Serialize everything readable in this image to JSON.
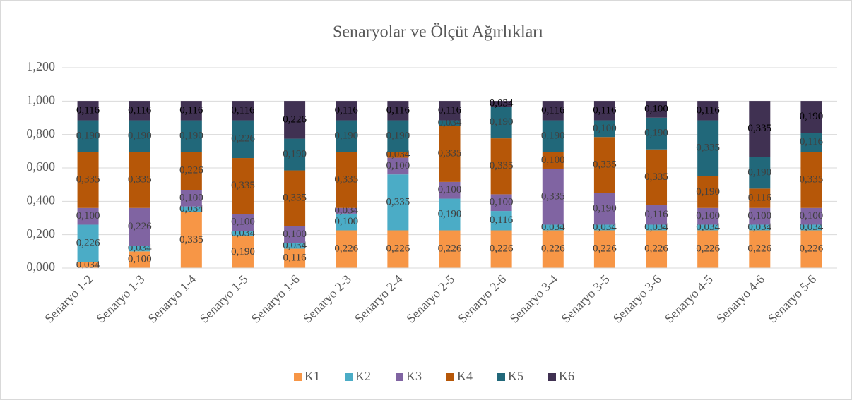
{
  "chart_data": {
    "type": "stacked_bar",
    "title": "Senaryolar ve Ölçüt Ağırlıkları",
    "categories": [
      "Senaryo 1-2",
      "Senaryo 1-3",
      "Senaryo 1-4",
      "Senaryo 1-5",
      "Senaryo 1-6",
      "Senaryo 2-3",
      "Senaryo 2-4",
      "Senaryo 2-5",
      "Senaryo 2-6",
      "Senaryo 3-4",
      "Senaryo 3-5",
      "Senaryo 3-6",
      "Senaryo 4-5",
      "Senaryo 4-6",
      "Senaryo 5-6"
    ],
    "series": [
      {
        "name": "K1",
        "color": "#f79646",
        "values": [
          0.034,
          0.1,
          0.335,
          0.19,
          0.116,
          0.226,
          0.226,
          0.226,
          0.226,
          0.226,
          0.226,
          0.226,
          0.226,
          0.226,
          0.226
        ],
        "value_labels": [
          "0,034",
          "0,100",
          "0,335",
          "0,190",
          "0,116",
          "0,226",
          "0,226",
          "0,226",
          "0,226",
          "0,226",
          "0,226",
          "0,226",
          "0,226",
          "0,226",
          "0,226"
        ]
      },
      {
        "name": "K2",
        "color": "#4bacc6",
        "values": [
          0.226,
          0.034,
          0.034,
          0.034,
          0.034,
          0.1,
          0.335,
          0.19,
          0.116,
          0.034,
          0.034,
          0.034,
          0.034,
          0.034,
          0.034
        ],
        "value_labels": [
          "0,226",
          "0,034",
          "0,034",
          "0,034",
          "0,034",
          "0,100",
          "0,335",
          "0,190",
          "0,116",
          "0,034",
          "0,034",
          "0,034",
          "0,034",
          "0,034",
          "0,034"
        ]
      },
      {
        "name": "K3",
        "color": "#8064a2",
        "values": [
          0.1,
          0.226,
          0.1,
          0.1,
          0.1,
          0.034,
          0.1,
          0.1,
          0.1,
          0.335,
          0.19,
          0.116,
          0.1,
          0.1,
          0.1
        ],
        "value_labels": [
          "0,100",
          "0,226",
          "0,100",
          "0,100",
          "0,100",
          "0,034",
          "0,100",
          "0,100",
          "0,100",
          "0,335",
          "0,190",
          "0,116",
          "0,100",
          "0,100",
          "0,100"
        ]
      },
      {
        "name": "K4",
        "color": "#b65708",
        "values": [
          0.335,
          0.335,
          0.226,
          0.335,
          0.335,
          0.335,
          0.034,
          0.335,
          0.335,
          0.1,
          0.335,
          0.335,
          0.19,
          0.116,
          0.335
        ],
        "value_labels": [
          "0,335",
          "0,335",
          "0,226",
          "0,335",
          "0,335",
          "0,335",
          "0,034",
          "0,335",
          "0,335",
          "0,100",
          "0,335",
          "0,335",
          "0,190",
          "0,116",
          "0,335"
        ]
      },
      {
        "name": "K5",
        "color": "#21687a",
        "values": [
          0.19,
          0.19,
          0.19,
          0.226,
          0.19,
          0.19,
          0.19,
          0.034,
          0.19,
          0.19,
          0.1,
          0.19,
          0.335,
          0.19,
          0.116
        ],
        "value_labels": [
          "0,190",
          "0,190",
          "0,190",
          "0,226",
          "0,190",
          "0,190",
          "0,190",
          "0,034",
          "0,190",
          "0,190",
          "0,100",
          "0,190",
          "0,335",
          "0,190",
          "0,116"
        ]
      },
      {
        "name": "K6",
        "color": "#403152",
        "values": [
          0.116,
          0.116,
          0.116,
          0.116,
          0.226,
          0.116,
          0.116,
          0.116,
          0.034,
          0.116,
          0.116,
          0.1,
          0.116,
          0.335,
          0.19
        ],
        "value_labels": [
          "0,116",
          "0,116",
          "0,116",
          "0,116",
          "0,226",
          "0,116",
          "0,116",
          "0,116",
          "0,034",
          "0,116",
          "0,116",
          "0,100",
          "0,116",
          "0,335",
          "0,190"
        ]
      }
    ],
    "ylim": [
      0,
      1.2
    ],
    "yticks": [
      {
        "value": 0,
        "label": "0,000"
      },
      {
        "value": 0.2,
        "label": "0,200"
      },
      {
        "value": 0.4,
        "label": "0,400"
      },
      {
        "value": 0.6,
        "label": "0,600"
      },
      {
        "value": 0.8,
        "label": "0,800"
      },
      {
        "value": 1.0,
        "label": "1,000"
      },
      {
        "value": 1.2,
        "label": "1,200"
      }
    ],
    "grid": true,
    "legend": "bottom"
  }
}
